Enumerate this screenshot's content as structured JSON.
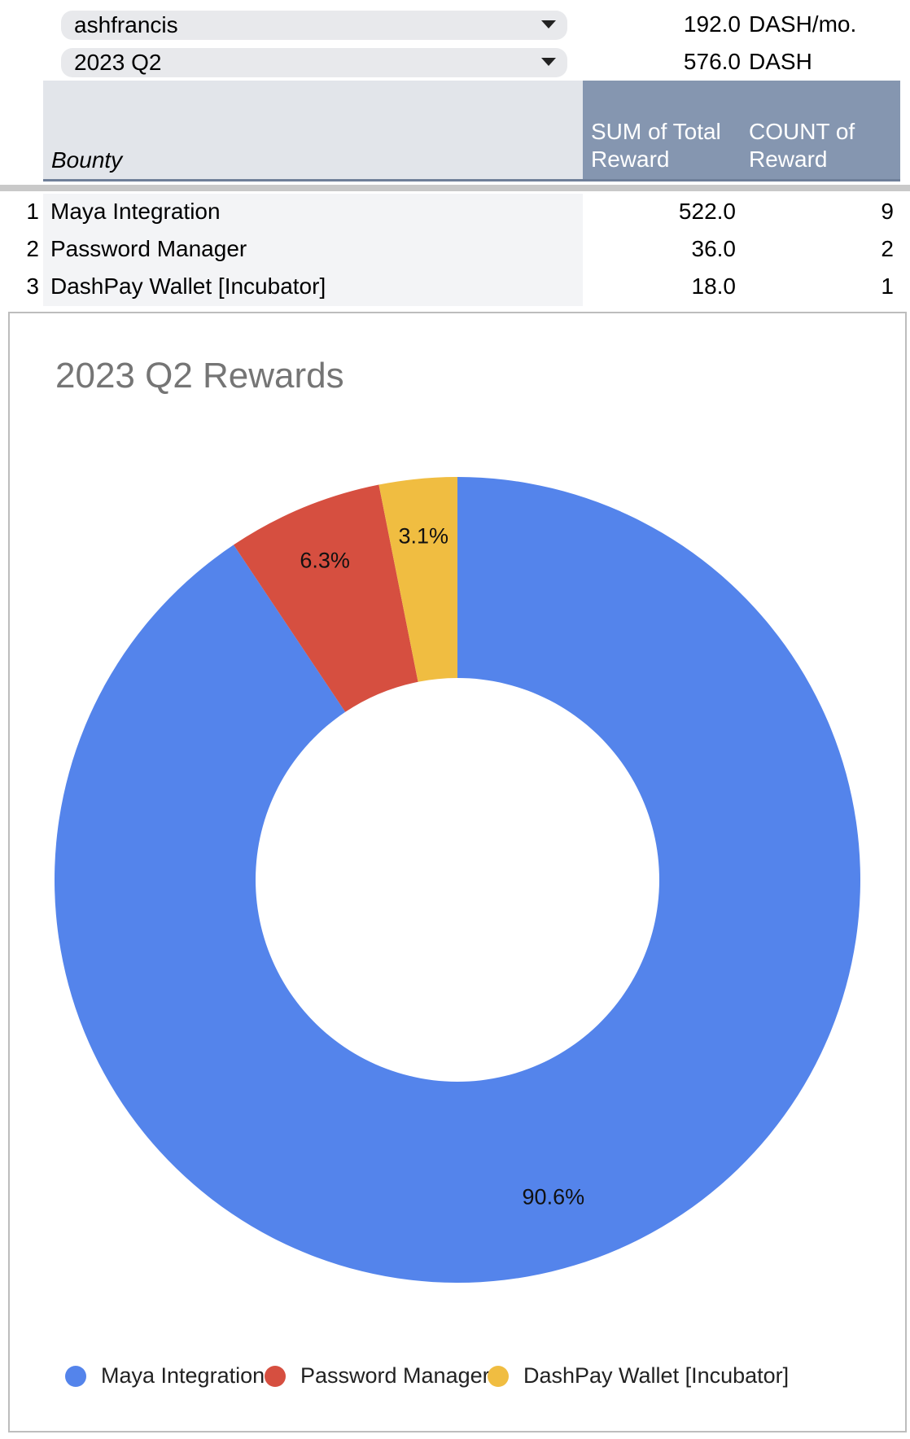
{
  "filters": [
    {
      "value": "ashfrancis",
      "amount": "192.0",
      "unit": "DASH/mo."
    },
    {
      "value": "2023 Q2",
      "amount": "576.0",
      "unit": "DASH"
    }
  ],
  "pivot": {
    "row_header": "Bounty",
    "col_headers": [
      "SUM of Total Reward",
      "COUNT of Reward"
    ],
    "rows": [
      {
        "num": "1",
        "name": "Maya Integration",
        "sum": "522.0",
        "count": "9"
      },
      {
        "num": "2",
        "name": "Password Manager",
        "sum": "36.0",
        "count": "2"
      },
      {
        "num": "3",
        "name": "DashPay Wallet [Incubator]",
        "sum": "18.0",
        "count": "1"
      }
    ]
  },
  "chart_data": {
    "type": "pie",
    "donut": true,
    "title": "2023 Q2 Rewards",
    "legend_position": "bottom",
    "slices": [
      {
        "label": "Maya Integration",
        "value": 522.0,
        "percent_label": "90.6%",
        "color": "#5484eb"
      },
      {
        "label": "Password Manager",
        "value": 36.0,
        "percent_label": "6.3%",
        "color": "#d64f40"
      },
      {
        "label": "DashPay Wallet [Incubator]",
        "value": 18.0,
        "percent_label": "3.1%",
        "color": "#f0bd41"
      }
    ]
  }
}
